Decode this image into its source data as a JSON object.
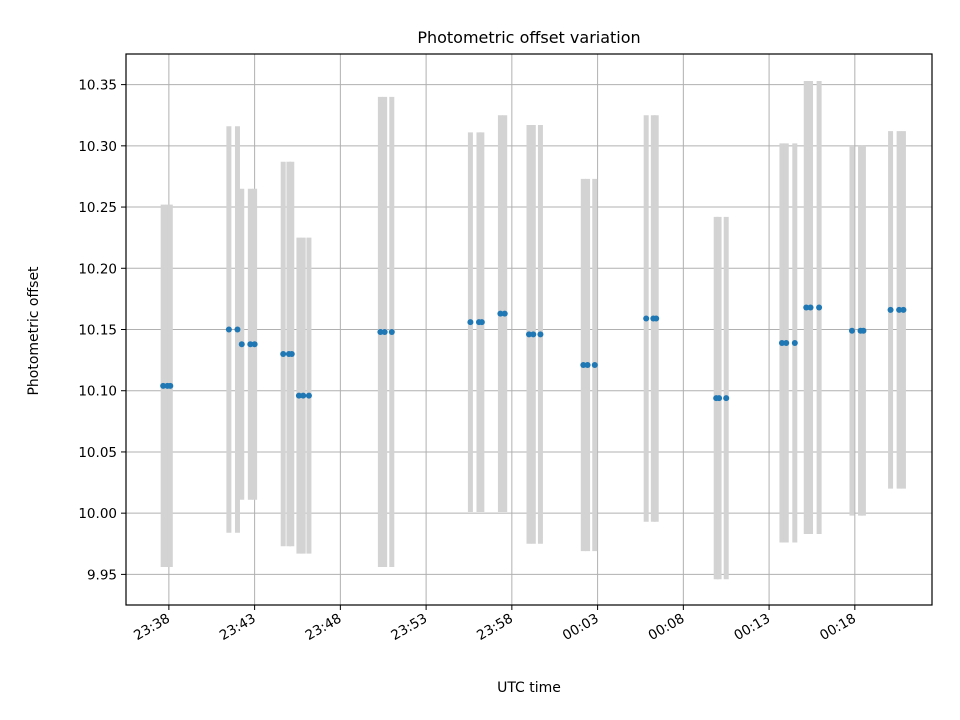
{
  "chart_data": {
    "type": "scatter",
    "title": "Photometric offset variation",
    "xlabel": "UTC time",
    "ylabel": "Photometric offset",
    "ylim": [
      9.925,
      10.375
    ],
    "xlim": [
      "23:35:30",
      "00:22:30"
    ],
    "grid": true,
    "legend": "none",
    "x_tick_labels": [
      "23:38",
      "23:43",
      "23:48",
      "23:53",
      "23:58",
      "00:03",
      "00:08",
      "00:13",
      "00:18"
    ],
    "y_tick_labels": [
      "9.95",
      "10.00",
      "10.05",
      "10.10",
      "10.15",
      "10.20",
      "10.25",
      "10.30",
      "10.35"
    ],
    "y_ticks": [
      9.95,
      10.0,
      10.05,
      10.1,
      10.15,
      10.2,
      10.25,
      10.3,
      10.35
    ],
    "colors": {
      "points": "#1f77b4",
      "errorbars": "#d3d3d3",
      "grid": "#b0b0b0"
    },
    "series": [
      {
        "x": [
          "23:37:40",
          "23:37:55",
          "23:38:05",
          "23:41:30",
          "23:42:00",
          "23:42:15",
          "23:42:45",
          "23:43:00",
          "23:44:40",
          "23:45:00",
          "23:45:10",
          "23:45:35",
          "23:45:50",
          "23:46:10",
          "23:50:20",
          "23:50:35",
          "23:51:00",
          "23:55:35",
          "23:56:05",
          "23:56:15",
          "23:57:20",
          "23:57:35",
          "23:59:00",
          "23:59:15",
          "23:59:40",
          "00:02:10",
          "00:02:25",
          "00:02:50",
          "00:05:50",
          "00:06:15",
          "00:06:25",
          "00:09:55",
          "00:10:05",
          "00:10:30",
          "00:13:45",
          "00:14:00",
          "00:14:30",
          "00:15:10",
          "00:15:25",
          "00:15:55",
          "00:17:50",
          "00:18:20",
          "00:18:30",
          "00:20:05",
          "00:20:35",
          "00:20:50"
        ],
        "y": [
          10.104,
          10.104,
          10.104,
          10.15,
          10.15,
          10.138,
          10.138,
          10.138,
          10.13,
          10.13,
          10.13,
          10.096,
          10.096,
          10.096,
          10.148,
          10.148,
          10.148,
          10.156,
          10.156,
          10.156,
          10.163,
          10.163,
          10.146,
          10.146,
          10.146,
          10.121,
          10.121,
          10.121,
          10.159,
          10.159,
          10.159,
          10.094,
          10.094,
          10.094,
          10.139,
          10.139,
          10.139,
          10.168,
          10.168,
          10.168,
          10.149,
          10.149,
          10.149,
          10.166,
          10.166,
          10.166
        ],
        "err": [
          0.148,
          0.148,
          0.148,
          0.166,
          0.166,
          0.127,
          0.127,
          0.127,
          0.157,
          0.157,
          0.157,
          0.129,
          0.129,
          0.129,
          0.192,
          0.192,
          0.192,
          0.155,
          0.155,
          0.155,
          0.162,
          0.162,
          0.171,
          0.171,
          0.171,
          0.152,
          0.152,
          0.152,
          0.166,
          0.166,
          0.166,
          0.148,
          0.148,
          0.148,
          0.163,
          0.163,
          0.163,
          0.185,
          0.185,
          0.185,
          0.151,
          0.151,
          0.151,
          0.146,
          0.146,
          0.146
        ]
      }
    ]
  }
}
